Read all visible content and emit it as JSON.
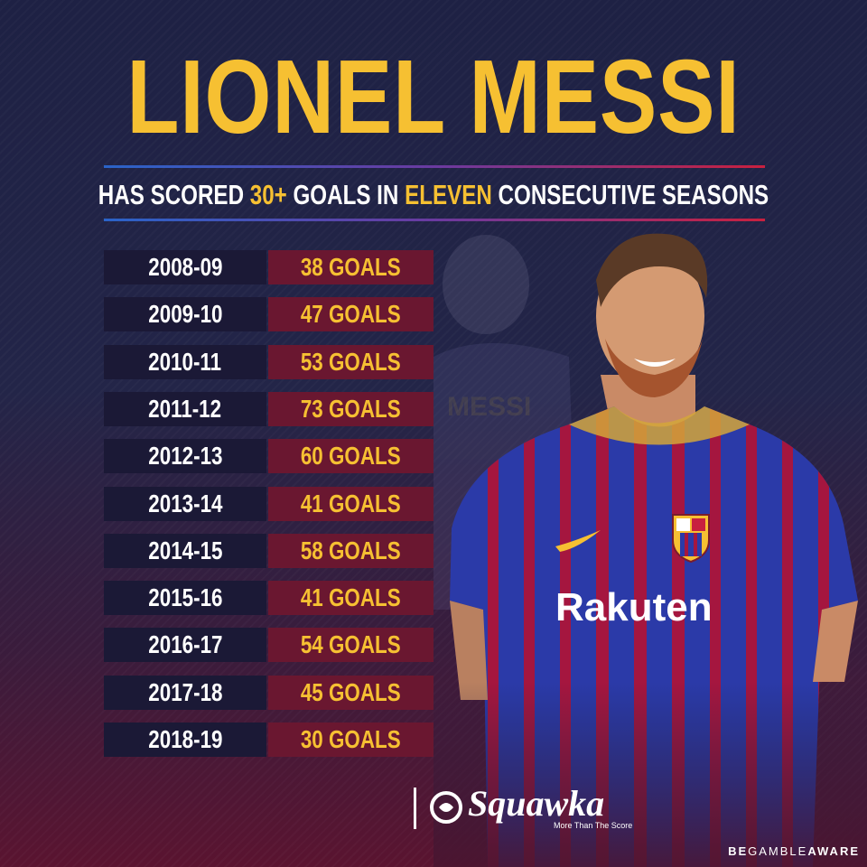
{
  "title": "LIONEL MESSI",
  "subtitle": {
    "part1": "HAS SCORED ",
    "highlight1": "30+",
    "part2": " GOALS IN ",
    "highlight2": "ELEVEN",
    "part3": " CONSECUTIVE SEASONS"
  },
  "seasons": [
    {
      "season": "2008-09",
      "goals": "38 GOALS"
    },
    {
      "season": "2009-10",
      "goals": "47 GOALS"
    },
    {
      "season": "2010-11",
      "goals": "53 GOALS"
    },
    {
      "season": "2011-12",
      "goals": "73 GOALS"
    },
    {
      "season": "2012-13",
      "goals": "60 GOALS"
    },
    {
      "season": "2013-14",
      "goals": "41 GOALS"
    },
    {
      "season": "2014-15",
      "goals": "58 GOALS"
    },
    {
      "season": "2015-16",
      "goals": "41 GOALS"
    },
    {
      "season": "2016-17",
      "goals": "54 GOALS"
    },
    {
      "season": "2017-18",
      "goals": "45 GOALS"
    },
    {
      "season": "2018-19",
      "goals": "30 GOALS"
    }
  ],
  "shirt": {
    "name_on_back": "MESSI",
    "sponsor": "Rakuten"
  },
  "brand": {
    "name": "Squawka",
    "tagline": "More Than The Score"
  },
  "footer": {
    "be": "BE",
    "gamble": "GAMBLE",
    "aware": "AWARE"
  },
  "colors": {
    "accent_gold": "#f6c032",
    "background_navy": "#1e2144",
    "season_cell": "#1b1936",
    "goals_cell": "#6a1730",
    "blaugrana_red": "#a5163f",
    "blaugrana_blue": "#2b3aa8"
  },
  "icons": {
    "brand_logo": "squawka-logo-icon",
    "club_crest": "fcb-crest-icon",
    "kit_maker": "swoosh-icon"
  }
}
